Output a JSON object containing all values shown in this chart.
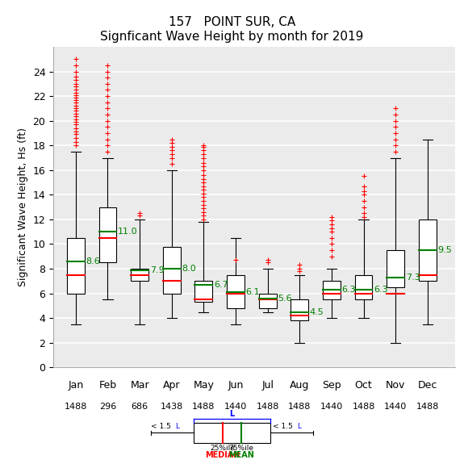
{
  "title1": "157   POINT SUR, CA",
  "title2": "Signficant Wave Height by month for 2019",
  "ylabel": "Significant Wave Height, Hs (ft)",
  "months": [
    "Jan",
    "Feb",
    "Mar",
    "Apr",
    "May",
    "Jun",
    "Jul",
    "Aug",
    "Sep",
    "Oct",
    "Nov",
    "Dec"
  ],
  "counts": [
    "1488",
    "296",
    "686",
    "1438",
    "1488",
    "1440",
    "1488",
    "1488",
    "1440",
    "1488",
    "1440",
    "1488"
  ],
  "q1": [
    6.0,
    8.5,
    7.0,
    6.0,
    5.3,
    4.8,
    4.8,
    3.8,
    5.5,
    5.5,
    6.5,
    7.0
  ],
  "median": [
    7.5,
    10.5,
    7.5,
    7.0,
    5.5,
    6.0,
    5.5,
    4.2,
    6.0,
    6.0,
    6.0,
    7.5
  ],
  "q3": [
    10.5,
    13.0,
    8.0,
    9.8,
    7.0,
    7.5,
    6.0,
    5.5,
    7.0,
    7.5,
    9.5,
    12.0
  ],
  "mean": [
    8.6,
    11.0,
    7.9,
    8.0,
    6.7,
    6.1,
    5.6,
    4.5,
    6.3,
    6.3,
    7.3,
    9.5
  ],
  "whislo": [
    3.5,
    5.5,
    3.5,
    4.0,
    4.5,
    3.5,
    4.5,
    2.0,
    4.0,
    4.0,
    2.0,
    3.5
  ],
  "whishi": [
    17.5,
    17.0,
    12.0,
    16.0,
    11.8,
    10.5,
    8.0,
    7.5,
    8.0,
    12.0,
    17.0,
    18.5
  ],
  "outliers": [
    [
      18.0,
      18.3,
      18.6,
      18.9,
      19.1,
      19.4,
      19.7,
      19.9,
      20.1,
      20.4,
      20.6,
      20.8,
      21.0,
      21.2,
      21.5,
      21.7,
      21.9,
      22.1,
      22.3,
      22.5,
      22.8,
      23.0,
      23.3,
      23.6,
      24.0,
      24.5,
      25.0
    ],
    [
      17.5,
      18.0,
      18.5,
      19.0,
      19.5,
      20.0,
      20.5,
      21.0,
      21.5,
      22.0,
      22.5,
      23.0,
      23.5,
      24.0,
      24.5
    ],
    [
      12.3,
      12.5
    ],
    [
      16.5,
      17.0,
      17.3,
      17.6,
      17.9,
      18.2,
      18.5
    ],
    [
      12.0,
      12.3,
      12.6,
      12.9,
      13.2,
      13.5,
      13.8,
      14.1,
      14.4,
      14.7,
      15.0,
      15.3,
      15.6,
      16.0,
      16.3,
      16.6,
      17.0,
      17.3,
      17.6,
      17.9,
      18.0
    ],
    [
      8.7
    ],
    [
      8.5,
      8.7
    ],
    [
      7.8,
      8.0,
      8.3
    ],
    [
      9.0,
      9.5,
      10.0,
      10.5,
      11.0,
      11.3,
      11.6,
      11.9,
      12.2
    ],
    [
      12.2,
      12.5,
      13.0,
      13.5,
      14.0,
      14.3,
      14.7,
      15.5
    ],
    [
      17.5,
      18.0,
      18.5,
      19.0,
      19.5,
      20.0,
      20.5,
      21.0
    ],
    []
  ],
  "ylim": [
    0,
    26
  ],
  "yticks": [
    0,
    2,
    4,
    6,
    8,
    10,
    12,
    14,
    16,
    18,
    20,
    22,
    24
  ],
  "bg_color": "#ebebeb",
  "grid_color": "white",
  "title_fontsize": 11,
  "label_fontsize": 9,
  "tick_fontsize": 9
}
